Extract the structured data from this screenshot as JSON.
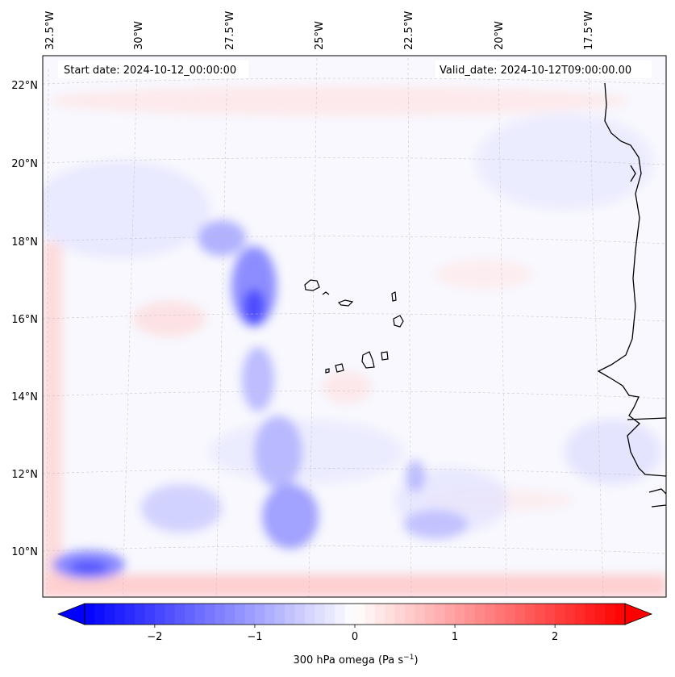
{
  "header": {
    "start_date": "Start date: 2024-10-12_00:00:00",
    "valid_date": "Valid_date: 2024-10-12T09:00:00.00"
  },
  "map": {
    "longitude_labels": [
      "32.5°W",
      "30°W",
      "27.5°W",
      "25°W",
      "22.5°W",
      "20°W",
      "17.5°W"
    ],
    "latitude_labels": [
      "22°N",
      "20°N",
      "18°N",
      "16°N",
      "14°N",
      "12°N",
      "10°N"
    ],
    "field_colors": {
      "negative": "#0000ff",
      "zero": "#ffffff",
      "positive": "#ff0000"
    },
    "coastline_color": "#000000"
  },
  "colorbar": {
    "label": "300 hPa omega (Pa s",
    "label_superscript": "−1",
    "label_close": ")",
    "ticks": [
      "−2",
      "−1",
      "0",
      "1",
      "2"
    ],
    "range": [
      -2.7,
      2.7
    ]
  }
}
